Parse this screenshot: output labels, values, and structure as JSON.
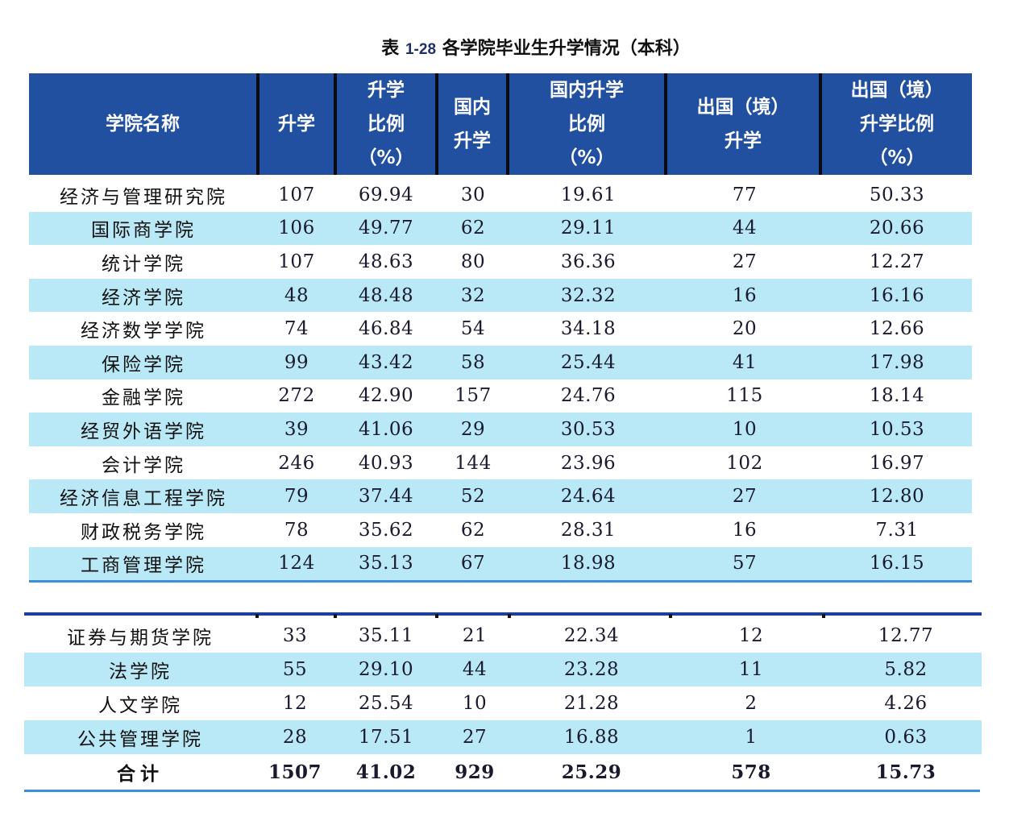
{
  "title": {
    "prefix": "表",
    "number": "1-28",
    "text": "各学院毕业生升学情况（本科）"
  },
  "columns": [
    {
      "key": "name",
      "label": "学院名称"
    },
    {
      "key": "total",
      "label": "升学"
    },
    {
      "key": "total_ratio",
      "label": "升学\n比例\n（%）"
    },
    {
      "key": "domestic",
      "label": "国内\n升学"
    },
    {
      "key": "domestic_ratio",
      "label": "国内升学\n比例\n（%）"
    },
    {
      "key": "abroad",
      "label": "出国（境）\n升学"
    },
    {
      "key": "abroad_ratio",
      "label": "出国（境）\n升学比例\n（%）"
    }
  ],
  "rows_part1": [
    [
      "经济与管理研究院",
      "107",
      "69.94",
      "30",
      "19.61",
      "77",
      "50.33"
    ],
    [
      "国际商学院",
      "106",
      "49.77",
      "62",
      "29.11",
      "44",
      "20.66"
    ],
    [
      "统计学院",
      "107",
      "48.63",
      "80",
      "36.36",
      "27",
      "12.27"
    ],
    [
      "经济学院",
      "48",
      "48.48",
      "32",
      "32.32",
      "16",
      "16.16"
    ],
    [
      "经济数学学院",
      "74",
      "46.84",
      "54",
      "34.18",
      "20",
      "12.66"
    ],
    [
      "保险学院",
      "99",
      "43.42",
      "58",
      "25.44",
      "41",
      "17.98"
    ],
    [
      "金融学院",
      "272",
      "42.90",
      "157",
      "24.76",
      "115",
      "18.14"
    ],
    [
      "经贸外语学院",
      "39",
      "41.06",
      "29",
      "30.53",
      "10",
      "10.53"
    ],
    [
      "会计学院",
      "246",
      "40.93",
      "144",
      "23.96",
      "102",
      "16.97"
    ],
    [
      "经济信息工程学院",
      "79",
      "37.44",
      "52",
      "24.64",
      "27",
      "12.80"
    ],
    [
      "财政税务学院",
      "78",
      "35.62",
      "62",
      "28.31",
      "16",
      "7.31"
    ],
    [
      "工商管理学院",
      "124",
      "35.13",
      "67",
      "18.98",
      "57",
      "16.15"
    ]
  ],
  "rows_part2": [
    [
      "证券与期货学院",
      "33",
      "35.11",
      "21",
      "22.34",
      "12",
      "12.77"
    ],
    [
      "法学院",
      "55",
      "29.10",
      "44",
      "23.28",
      "11",
      "5.82"
    ],
    [
      "人文学院",
      "12",
      "25.54",
      "10",
      "21.28",
      "2",
      "4.26"
    ],
    [
      "公共管理学院",
      "28",
      "17.51",
      "27",
      "16.88",
      "1",
      "0.63"
    ]
  ],
  "total_row": [
    "合计",
    "1507",
    "41.02",
    "929",
    "25.29",
    "578",
    "15.73"
  ],
  "colors": {
    "header_bg": "#2150a1",
    "stripe_bg": "#b9e8f6",
    "rule_light": "#3a8fd8",
    "rule_dark": "#1d3f9c"
  }
}
